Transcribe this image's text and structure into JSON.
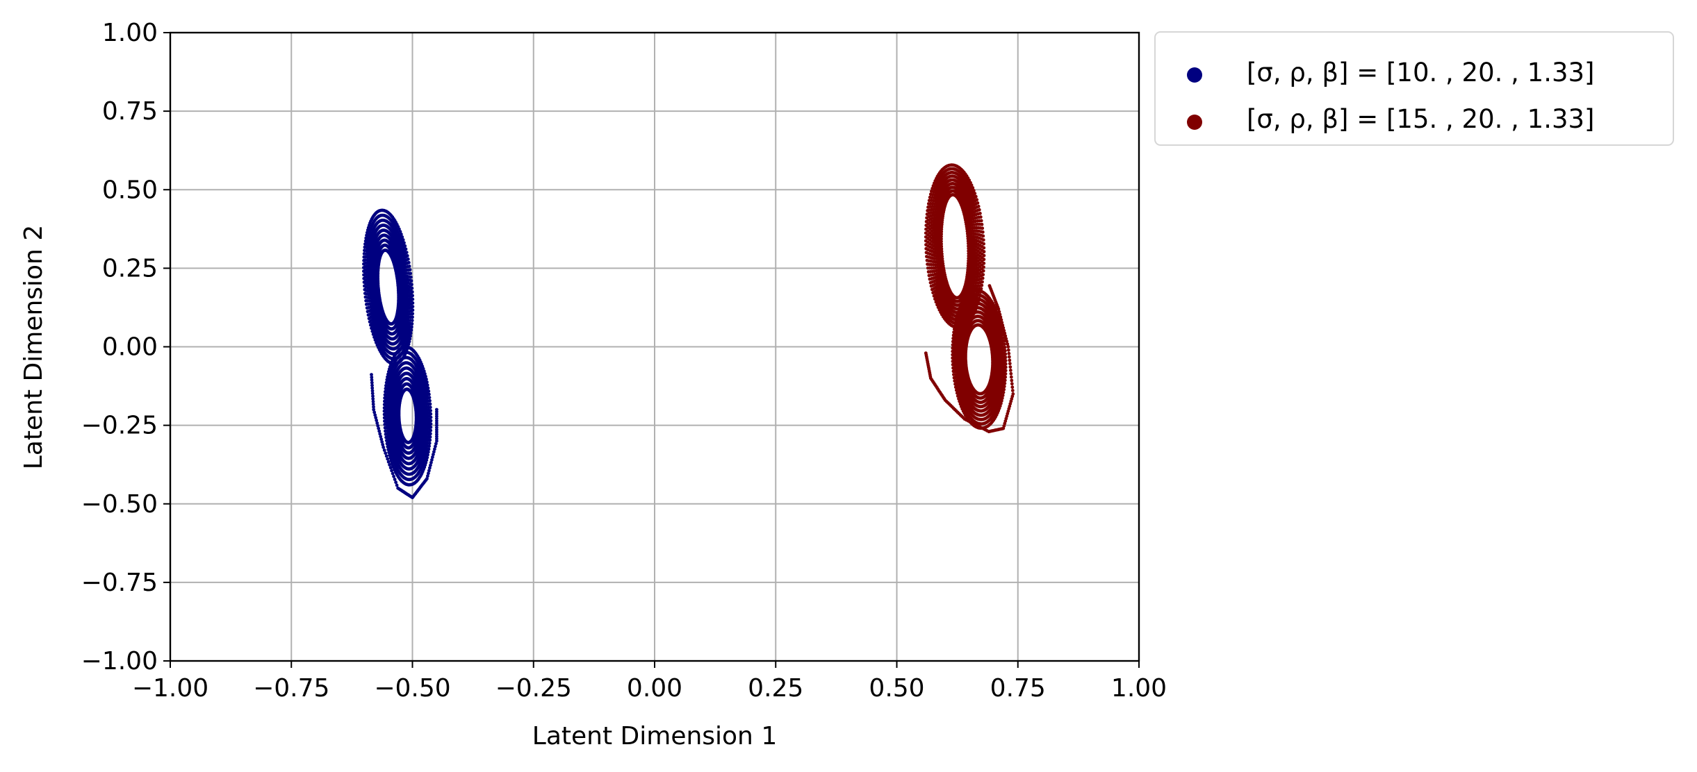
{
  "chart_data": {
    "type": "scatter",
    "title": "",
    "xlabel": "Latent Dimension 1",
    "ylabel": "Latent Dimension 2",
    "xlim": [
      -1.0,
      1.0
    ],
    "ylim": [
      -1.0,
      1.0
    ],
    "xticks": [
      -1.0,
      -0.75,
      -0.5,
      -0.25,
      0.0,
      0.25,
      0.5,
      0.75,
      1.0
    ],
    "yticks": [
      -1.0,
      -0.75,
      -0.5,
      -0.25,
      0.0,
      0.25,
      0.5,
      0.75,
      1.0
    ],
    "xtick_labels": [
      "−1.00",
      "−0.75",
      "−0.50",
      "−0.25",
      "0.00",
      "0.25",
      "0.50",
      "0.75",
      "1.00"
    ],
    "ytick_labels": [
      "−1.00",
      "−0.75",
      "−0.50",
      "−0.25",
      "0.00",
      "0.25",
      "0.50",
      "0.75",
      "1.00"
    ],
    "grid": true,
    "legend_position": "outside upper right",
    "series": [
      {
        "name": "[σ, ρ, β] = [10.  , 20.  ,  1.33]",
        "color": "#000080",
        "shape": "lorenz-butterfly",
        "upper_lobe": {
          "center": [
            -0.55,
            0.19
          ],
          "rx": 0.05,
          "ry": 0.25,
          "hole_rx": 0.021,
          "hole_ry": 0.12,
          "tilt_deg": 12
        },
        "lower_lobe": {
          "center": [
            -0.51,
            -0.22
          ],
          "rx": 0.048,
          "ry": 0.22,
          "hole_rx": 0.018,
          "hole_ry": 0.085,
          "tilt_deg": 4
        },
        "tail": [
          [
            -0.45,
            -0.2
          ],
          [
            -0.45,
            -0.3
          ],
          [
            -0.47,
            -0.42
          ],
          [
            -0.5,
            -0.48
          ],
          [
            -0.53,
            -0.45
          ],
          [
            -0.56,
            -0.32
          ],
          [
            -0.58,
            -0.2
          ],
          [
            -0.585,
            -0.08
          ]
        ],
        "x_range": [
          -0.6,
          -0.45
        ],
        "y_range": [
          -0.48,
          0.44
        ]
      },
      {
        "name": "[σ, ρ, β] = [15.  , 20.  ,  1.33]",
        "color": "#800000",
        "shape": "lorenz-butterfly",
        "upper_lobe": {
          "center": [
            0.62,
            0.32
          ],
          "rx": 0.06,
          "ry": 0.26,
          "hole_rx": 0.028,
          "hole_ry": 0.165,
          "tilt_deg": 6
        },
        "lower_lobe": {
          "center": [
            0.67,
            -0.04
          ],
          "rx": 0.055,
          "ry": 0.22,
          "hole_rx": 0.028,
          "hole_ry": 0.11,
          "tilt_deg": 5
        },
        "tail": [
          [
            0.56,
            -0.02
          ],
          [
            0.57,
            -0.1
          ],
          [
            0.6,
            -0.17
          ],
          [
            0.64,
            -0.23
          ],
          [
            0.69,
            -0.27
          ],
          [
            0.72,
            -0.26
          ],
          [
            0.74,
            -0.15
          ],
          [
            0.73,
            0.0
          ],
          [
            0.71,
            0.12
          ],
          [
            0.69,
            0.2
          ]
        ],
        "x_range": [
          0.555,
          0.74
        ],
        "y_range": [
          -0.27,
          0.58
        ]
      }
    ]
  }
}
